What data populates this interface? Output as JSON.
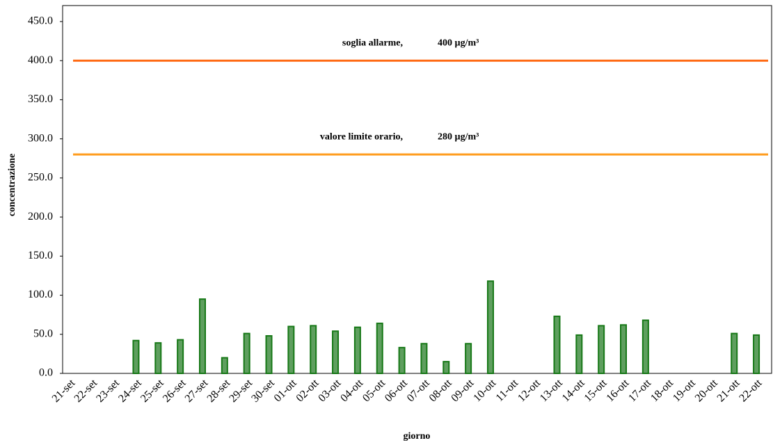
{
  "chart_data": {
    "type": "bar",
    "x_label": "giorno",
    "y_label": "concentrazione",
    "categories": [
      "21-set",
      "22-set",
      "23-set",
      "24-set",
      "25-set",
      "26-set",
      "27-set",
      "28-set",
      "29-set",
      "30-set",
      "01-ott",
      "02-ott",
      "03-ott",
      "04-ott",
      "05-ott",
      "06-ott",
      "07-ott",
      "08-ott",
      "09-ott",
      "10-ott",
      "11-ott",
      "12-ott",
      "13-ott",
      "14-ott",
      "15-ott",
      "16-ott",
      "17-ott",
      "18-ott",
      "19-ott",
      "20-ott",
      "21-ott",
      "22-ott"
    ],
    "values": [
      0,
      0,
      0,
      42,
      39,
      43,
      95,
      20,
      51,
      48,
      60,
      61,
      54,
      59,
      64,
      33,
      38,
      15,
      38,
      118,
      0,
      0,
      73,
      49,
      61,
      62,
      68,
      0,
      0,
      0,
      51,
      49
    ],
    "color": "#5f9f5f",
    "ylim": [
      0,
      450
    ],
    "yticks": [
      {
        "value": 0,
        "label": "0.0"
      },
      {
        "value": 50,
        "label": "50.0"
      },
      {
        "value": 100,
        "label": "100.0"
      },
      {
        "value": 150,
        "label": "150.0"
      },
      {
        "value": 200,
        "label": "200.0"
      },
      {
        "value": 250,
        "label": "250.0"
      },
      {
        "value": 300,
        "label": "300.0"
      },
      {
        "value": 350,
        "label": "350.0"
      },
      {
        "value": 400,
        "label": "400.0"
      },
      {
        "value": 450,
        "label": "450.0"
      }
    ],
    "reference_lines": [
      {
        "value": 400,
        "name": "soglia allarme,",
        "label": "400 µg/m³",
        "color": "#ff6a13"
      },
      {
        "value": 280,
        "name": "valore limite orario,",
        "label": "280 µg/m³",
        "color": "#ff9a1a"
      }
    ]
  }
}
